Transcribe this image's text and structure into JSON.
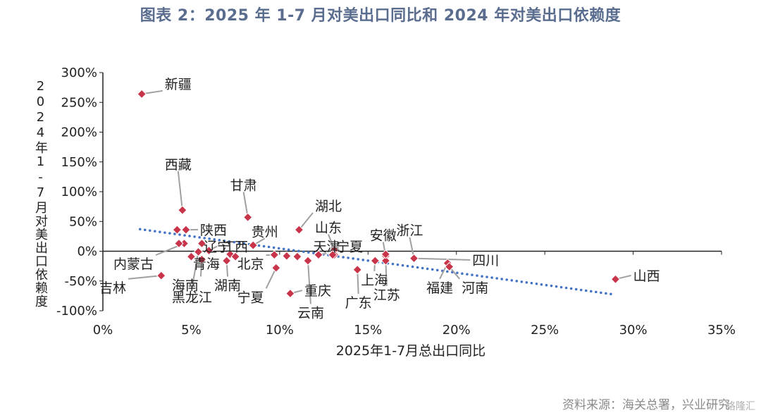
{
  "title": "图表 2：2025 年 1-7 月对美出口同比和 2024 年对美出口依赖度",
  "source": "资料来源：海关总署，兴业研究",
  "watermark": "格隆汇",
  "colors": {
    "title": "#5a6d8f",
    "point": "#c8344a",
    "trend": "#4472c4",
    "leader": "#a0a0a0"
  },
  "chart_data": {
    "type": "scatter",
    "xlabel": "2025年1-7月总出口同比",
    "ylabel": "2024年1-7月对美出口依赖度",
    "xlim": [
      0,
      0.35
    ],
    "ylim": [
      -1.0,
      3.0
    ],
    "x_ticks": [
      "0%",
      "5%",
      "10%",
      "15%",
      "20%",
      "25%",
      "30%",
      "35%"
    ],
    "y_ticks": [
      "300%",
      "250%",
      "200%",
      "150%",
      "100%",
      "50%",
      "0%",
      "-50%",
      "-100%"
    ],
    "grid": false,
    "trendline": {
      "style": "dotted",
      "from": [
        0.021,
        0.37
      ],
      "to": [
        0.29,
        -0.73
      ]
    },
    "points": [
      {
        "name": "新疆",
        "x": 0.022,
        "y": 2.64,
        "lx": 0.035,
        "ly": 2.73
      },
      {
        "name": "西藏",
        "x": 0.045,
        "y": 0.69,
        "lx": 0.035,
        "ly": 1.38
      },
      {
        "name": "甘肃",
        "x": 0.082,
        "y": 0.57,
        "lx": 0.072,
        "ly": 1.03
      },
      {
        "name": "湖北",
        "x": 0.111,
        "y": 0.36,
        "lx": 0.12,
        "ly": 0.68
      },
      {
        "name": "山东",
        "x": 0.131,
        "y": 0.02,
        "lx": 0.12,
        "ly": 0.32
      },
      {
        "name": "陕西",
        "x": 0.047,
        "y": 0.36,
        "lx": 0.055,
        "ly": 0.28
      },
      {
        "name": "贵州",
        "x": 0.085,
        "y": 0.1,
        "lx": 0.084,
        "ly": 0.25
      },
      {
        "name": "安徽",
        "x": 0.16,
        "y": -0.08,
        "lx": 0.151,
        "ly": 0.19
      },
      {
        "name": "浙江",
        "x": 0.176,
        "y": -0.12,
        "lx": 0.166,
        "ly": 0.27
      },
      {
        "name": "宁夏",
        "x": 0.131,
        "y": -0.06,
        "lx": 0.132,
        "ly": 0.0
      },
      {
        "name": "天津",
        "x": 0.122,
        "y": -0.06,
        "lx": 0.119,
        "ly": 0.0
      },
      {
        "name": "江西",
        "x": 0.072,
        "y": -0.05,
        "lx": 0.067,
        "ly": 0.0
      },
      {
        "name": "辽宁",
        "x": 0.06,
        "y": 0.01,
        "lx": 0.057,
        "ly": 0.0
      },
      {
        "name": "内蒙古",
        "x": 0.046,
        "y": 0.13,
        "lx": 0.006,
        "ly": -0.29
      },
      {
        "name": "青海",
        "x": 0.05,
        "y": -0.09,
        "lx": 0.051,
        "ly": -0.29
      },
      {
        "name": "北京",
        "x": 0.097,
        "y": -0.06,
        "lx": 0.076,
        "ly": -0.29
      },
      {
        "name": "吉林",
        "x": 0.033,
        "y": -0.41,
        "lx": -0.002,
        "ly": -0.69
      },
      {
        "name": "海南",
        "x": 0.056,
        "y": -0.14,
        "lx": 0.039,
        "ly": -0.65
      },
      {
        "name": "湖南",
        "x": 0.07,
        "y": -0.16,
        "lx": 0.063,
        "ly": -0.65
      },
      {
        "name": "黑龙江",
        "x": 0.054,
        "y": -0.01,
        "lx": 0.039,
        "ly": -0.85
      },
      {
        "name": "宁夏",
        "x": 0.098,
        "y": -0.28,
        "lx": 0.076,
        "ly": -0.85
      },
      {
        "name": "重庆",
        "x": 0.106,
        "y": -0.71,
        "lx": 0.114,
        "ly": -0.74
      },
      {
        "name": "云南",
        "x": 0.116,
        "y": -0.16,
        "lx": 0.11,
        "ly": -1.11
      },
      {
        "name": "上海",
        "x": 0.154,
        "y": -0.16,
        "lx": 0.146,
        "ly": -0.56
      },
      {
        "name": "广东",
        "x": 0.144,
        "y": -0.31,
        "lx": 0.137,
        "ly": -0.94
      },
      {
        "name": "江苏",
        "x": 0.16,
        "y": -0.16,
        "lx": 0.153,
        "ly": -0.81
      },
      {
        "name": "福建",
        "x": 0.195,
        "y": -0.2,
        "lx": 0.183,
        "ly": -0.69
      },
      {
        "name": "河南",
        "x": 0.196,
        "y": -0.26,
        "lx": 0.203,
        "ly": -0.69
      },
      {
        "name": "四川",
        "x": 0.176,
        "y": -0.12,
        "lx": 0.209,
        "ly": -0.23
      },
      {
        "name": "山西",
        "x": 0.29,
        "y": -0.47,
        "lx": 0.3,
        "ly": -0.49
      },
      {
        "name": "",
        "x": 0.042,
        "y": 0.36
      },
      {
        "name": "",
        "x": 0.043,
        "y": 0.13
      },
      {
        "name": "",
        "x": 0.056,
        "y": 0.13
      },
      {
        "name": "",
        "x": 0.075,
        "y": -0.09
      },
      {
        "name": "",
        "x": 0.11,
        "y": -0.09
      },
      {
        "name": "",
        "x": 0.104,
        "y": -0.08
      },
      {
        "name": "",
        "x": 0.13,
        "y": -0.06
      },
      {
        "name": "",
        "x": 0.16,
        "y": -0.05
      }
    ]
  }
}
